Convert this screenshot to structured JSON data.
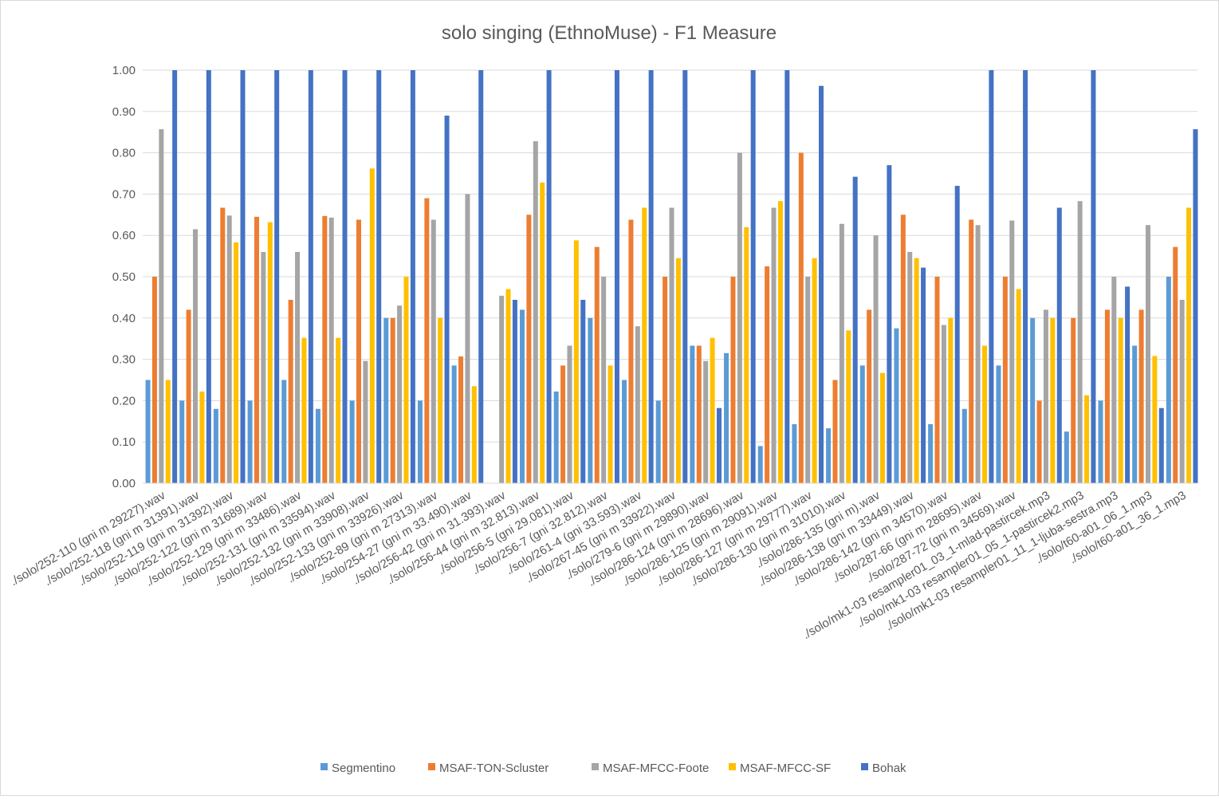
{
  "chart_data": {
    "type": "bar",
    "title": "solo singing (EthnoMuse) - F1 Measure",
    "xlabel": "",
    "ylabel": "",
    "ylim": [
      0,
      1
    ],
    "yticks": [
      "0.00",
      "0.10",
      "0.20",
      "0.30",
      "0.40",
      "0.50",
      "0.60",
      "0.70",
      "0.80",
      "0.90",
      "1.00"
    ],
    "grid": true,
    "legend_position": "bottom",
    "categories": [
      "./solo/252-110 (gni m 29227).wav",
      "./solo/252-118 (gni m 31391).wav",
      "./solo/252-119 (gni m 31392).wav",
      "./solo/252-122 (gni m 31689).wav",
      "./solo/252-129 (gni m 33486).wav",
      "./solo/252-131 (gni m 33594).wav",
      "./solo/252-132 (gni m 33908).wav",
      "./solo/252-133 (gni m 33926).wav",
      "./solo/252-89 (gni m 27313).wav",
      "./solo/254-27 (gni m 33.490).wav",
      "./solo/256-42 (gni m 31.393).wav",
      "./solo/256-44 (gni m 32.813).wav",
      "./solo/256-5 (gni 29.081).wav",
      "./solo/256-7 (gni 32.812).wav",
      "./solo/261-4 (gni 33.593).wav",
      "./solo/267-45 (gni m 33922).wav",
      "./solo/279-6 (gni m 29890).wav",
      "./solo/286-124 (gni m 28696).wav",
      "./solo/286-125 (gni m 29091).wav",
      "./solo/286-127 (gni m 29777).wav",
      "./solo/286-130 (gni m 31010).wav",
      "./solo/286-135 (gni m).wav",
      "./solo/286-138 (gni m 33449).wav",
      "./solo/286-142 (gni m 34570).wav",
      "./solo/287-66 (gni m 28695).wav",
      "./solo/287-72 (gni m 34569).wav",
      "./solo/mk1-03 resampler01_03_1-mlad-pastircek.mp3",
      "./solo/mk1-03 resampler01_05_1-pastircek2.mp3",
      "./solo/mk1-03 resampler01_11_1-ljuba-sestra.mp3",
      "./solo/t60-a01_06_1.mp3",
      "./solo/t60-a01_36_1.mp3"
    ],
    "series": [
      {
        "name": "Segmentino",
        "color": "#5b9bd5",
        "values": [
          0.25,
          0.2,
          0.18,
          0.2,
          0.25,
          0.18,
          0.2,
          0.4,
          0.2,
          0.285,
          0,
          0.42,
          0.222,
          0.4,
          0.25,
          0.2,
          0.333,
          0.315,
          0.09,
          0.143,
          0.133,
          0.285,
          0.375,
          0.143,
          0.18,
          0.285,
          0.4,
          0.125,
          0.2,
          0.333,
          0.5
        ]
      },
      {
        "name": "MSAF-TON-Scluster",
        "color": "#ed7d31",
        "values": [
          0.5,
          0.42,
          0.667,
          0.645,
          0.444,
          0.647,
          0.638,
          0.4,
          0.69,
          0.307,
          0,
          0.65,
          0.285,
          0.572,
          0.638,
          0.5,
          0.333,
          0.5,
          0.525,
          0.8,
          0.25,
          0.42,
          0.65,
          0.5,
          0.638,
          0.5,
          0.2,
          0.4,
          0.42,
          0.42,
          0.572
        ]
      },
      {
        "name": "MSAF-MFCC-Foote",
        "color": "#a5a5a5",
        "values": [
          0.857,
          0.615,
          0.648,
          0.56,
          0.56,
          0.643,
          0.296,
          0.43,
          0.638,
          0.7,
          0.454,
          0.828,
          0.333,
          0.5,
          0.38,
          0.667,
          0.296,
          0.8,
          0.667,
          0.5,
          0.628,
          0.6,
          0.56,
          0.383,
          0.625,
          0.636,
          0.42,
          0.683,
          0.5,
          0.625,
          0.444
        ]
      },
      {
        "name": "MSAF-MFCC-SF",
        "color": "#ffc000",
        "values": [
          0.25,
          0.222,
          0.583,
          0.632,
          0.352,
          0.352,
          0.762,
          0.5,
          0.4,
          0.235,
          0.47,
          0.728,
          0.588,
          0.285,
          0.667,
          0.545,
          0.352,
          0.62,
          0.683,
          0.545,
          0.37,
          0.267,
          0.545,
          0.4,
          0.333,
          0.47,
          0.4,
          0.213,
          0.4,
          0.308,
          0.667
        ]
      },
      {
        "name": "Bohak",
        "color": "#4472c4",
        "values": [
          1.0,
          1.0,
          1.0,
          1.0,
          1.0,
          1.0,
          1.0,
          1.0,
          0.89,
          1.0,
          0.444,
          1.0,
          0.444,
          1.0,
          1.0,
          1.0,
          0.182,
          1.0,
          1.0,
          0.962,
          0.742,
          0.77,
          0.522,
          0.72,
          1.0,
          1.0,
          0.667,
          1.0,
          0.476,
          0.182,
          0.857
        ]
      }
    ]
  }
}
